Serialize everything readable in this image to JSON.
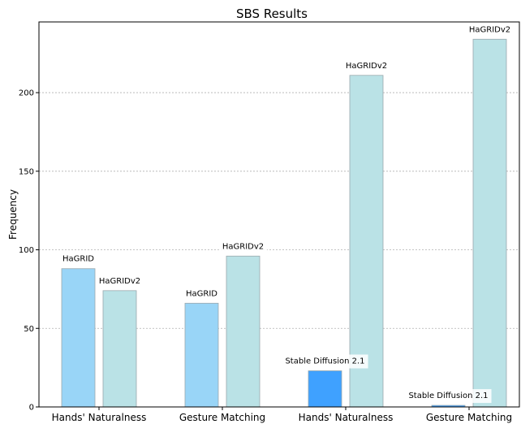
{
  "chart_data": {
    "type": "bar",
    "title": "SBS Results",
    "ylabel": "Frequency",
    "xlabel": "",
    "ylim": [
      0,
      245
    ],
    "yticks": [
      0,
      50,
      100,
      150,
      200
    ],
    "grid": "horizontal-dashed",
    "categories": [
      "Hands' Naturalness",
      "Gesture Matching",
      "Hands' Naturalness",
      "Gesture Matching"
    ],
    "groups": [
      {
        "category": "Hands' Naturalness",
        "bars": [
          {
            "label": "HaGRID",
            "value": 88,
            "color": "#99d5f7"
          },
          {
            "label": "HaGRIDv2",
            "value": 74,
            "color": "#bae2e6"
          }
        ]
      },
      {
        "category": "Gesture Matching",
        "bars": [
          {
            "label": "HaGRID",
            "value": 66,
            "color": "#99d5f7"
          },
          {
            "label": "HaGRIDv2",
            "value": 96,
            "color": "#bae2e6"
          }
        ]
      },
      {
        "category": "Hands' Naturalness",
        "bars": [
          {
            "label": "Stable Diffusion 2.1",
            "value": 23,
            "color": "#3fa1ff"
          },
          {
            "label": "HaGRIDv2",
            "value": 211,
            "color": "#bae2e6"
          }
        ]
      },
      {
        "category": "Gesture Matching",
        "bars": [
          {
            "label": "Stable Diffusion 2.1",
            "value": 1,
            "color": "#3fa1ff"
          },
          {
            "label": "HaGRIDv2",
            "value": 234,
            "color": "#bae2e6"
          }
        ]
      }
    ]
  }
}
